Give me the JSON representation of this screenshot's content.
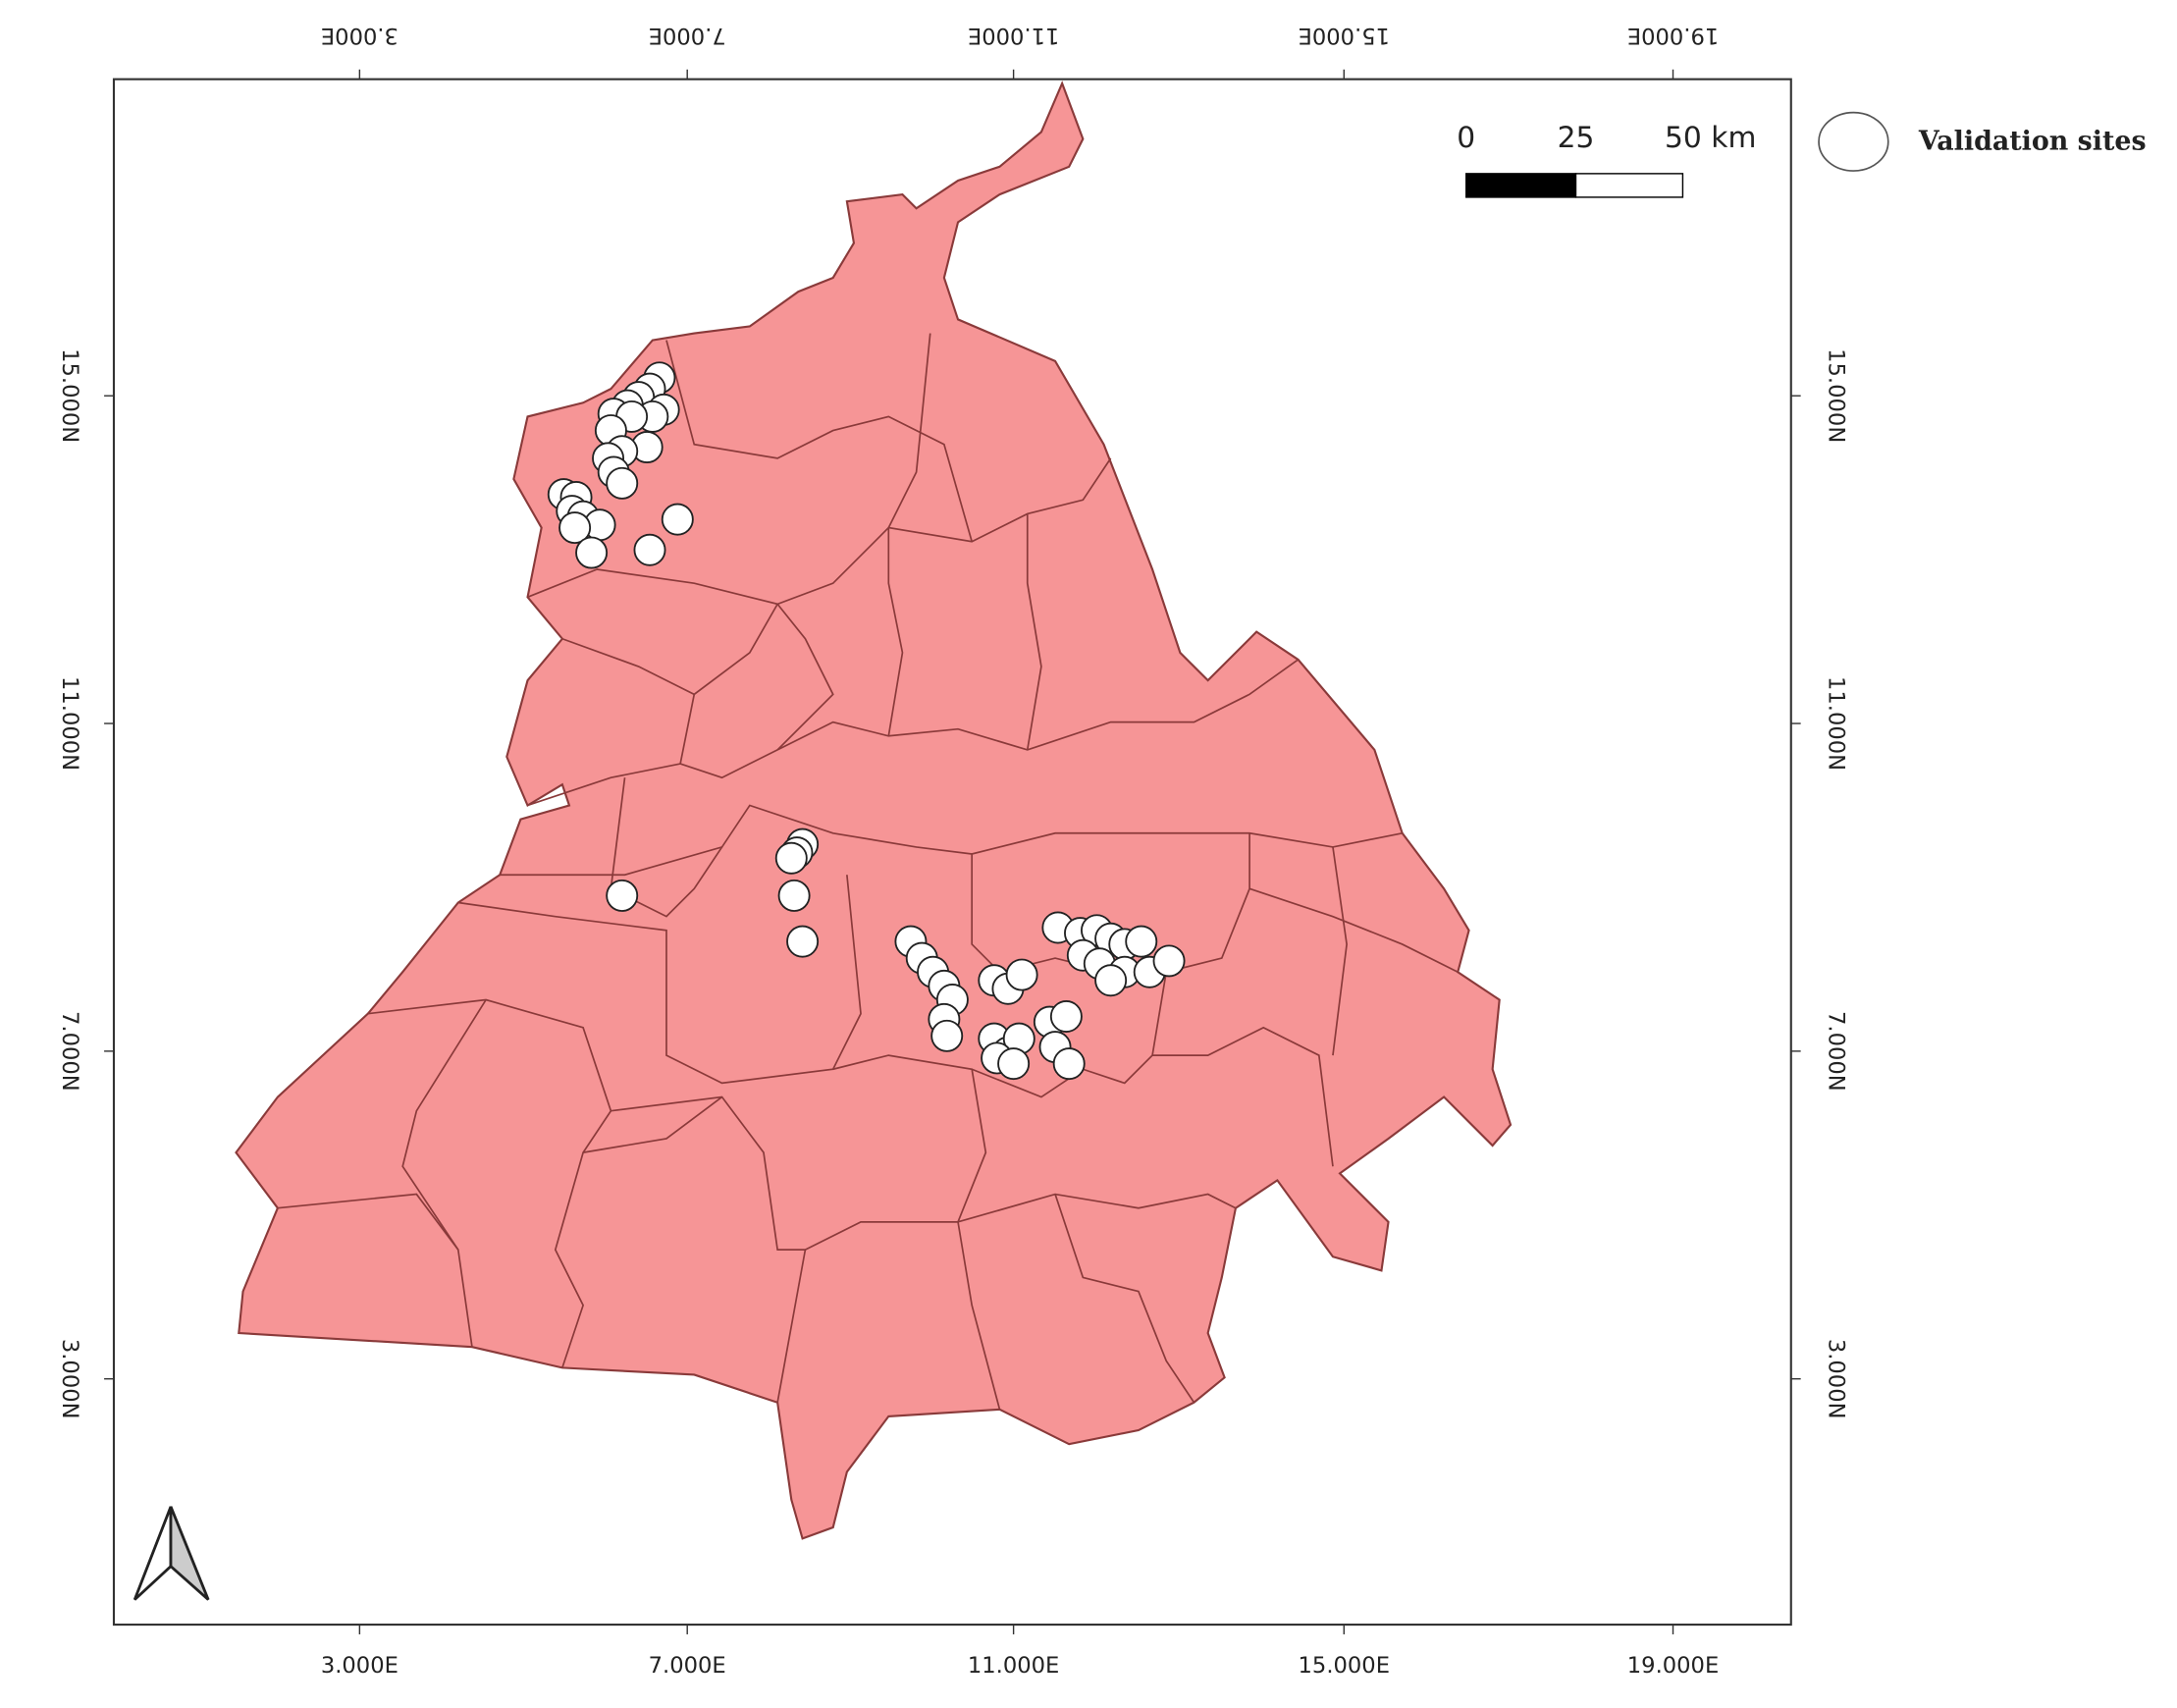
{
  "map": {
    "grid_labels": {
      "top": [
        "3.000E",
        "7.000E",
        "11.000E",
        "15.000E",
        "19.000E"
      ],
      "bottom": [
        "3.000E",
        "7.000E",
        "11.000E",
        "15.000E",
        "19.000E"
      ],
      "left": [
        "15.000N",
        "11.000N",
        "7.000N",
        "3.000N"
      ],
      "right": [
        "15.000N",
        "11.000N",
        "7.000N",
        "3.000N"
      ]
    },
    "scale_bar": {
      "labels": [
        "0",
        "25",
        "50 km"
      ]
    },
    "legend": {
      "label": "Validation sites"
    }
  }
}
